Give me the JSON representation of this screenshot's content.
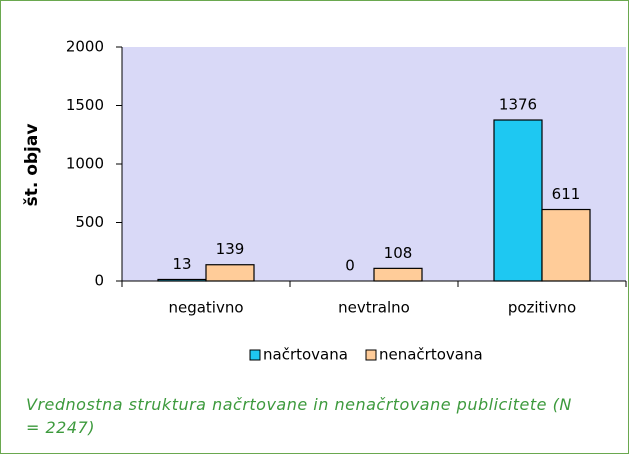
{
  "chart_data": {
    "type": "bar",
    "caption": "Vrednostna struktura načrtovane in nenačrtovane publicitete (N = 2247)",
    "ylabel": "št. objav",
    "categories": [
      "negativno",
      "nevtralno",
      "pozitivno"
    ],
    "series": [
      {
        "name": "načrtovana",
        "color": "#1ec8f2",
        "values": [
          13,
          0,
          1376
        ]
      },
      {
        "name": "nenačrtovana",
        "color": "#ffcc99",
        "values": [
          139,
          108,
          611
        ]
      }
    ],
    "ylim": [
      0,
      2000
    ],
    "yticks": [
      0,
      500,
      1000,
      1500,
      2000
    ],
    "plot_background": "#d9d9f7",
    "legend": "bottom"
  }
}
